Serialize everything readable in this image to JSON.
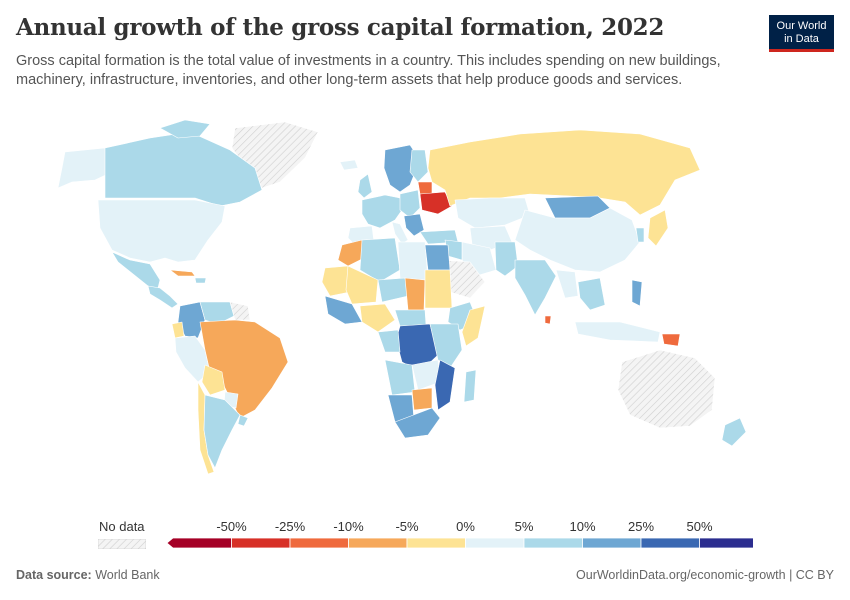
{
  "header": {
    "title": "Annual growth of the gross capital formation, 2022",
    "subtitle": "Gross capital formation is the total value of investments in a country. This includes spending on new buildings, machinery, infrastructure, inventories, and other long-term assets that help produce goods and services."
  },
  "logo": {
    "line1": "Our World",
    "line2": "in Data"
  },
  "legend": {
    "no_data_label": "No data",
    "ticks": [
      "-50%",
      "-25%",
      "-10%",
      "-5%",
      "0%",
      "5%",
      "10%",
      "25%",
      "50%"
    ],
    "bins": [
      {
        "from": null,
        "to": "-50%",
        "color": "#a50026"
      },
      {
        "from": "-50%",
        "to": "-25%",
        "color": "#d73027"
      },
      {
        "from": "-25%",
        "to": "-10%",
        "color": "#ef6a3d"
      },
      {
        "from": "-10%",
        "to": "-5%",
        "color": "#f6a85a"
      },
      {
        "from": "-5%",
        "to": "0%",
        "color": "#fde394"
      },
      {
        "from": "0%",
        "to": "5%",
        "color": "#e3f2f8"
      },
      {
        "from": "5%",
        "to": "10%",
        "color": "#abd9e9"
      },
      {
        "from": "10%",
        "to": "25%",
        "color": "#6ea7d3"
      },
      {
        "from": "25%",
        "to": "50%",
        "color": "#3a68b2"
      },
      {
        "from": "50%",
        "to": null,
        "color": "#2b2d8f"
      }
    ]
  },
  "colors": {
    "no_data": "#f1f1f1",
    "border": "#ffffff",
    "hatch": "#cfcfcf"
  },
  "footer": {
    "source_label": "Data source:",
    "source_value": "World Bank",
    "url": "OurWorldinData.org/economic-growth | CC BY"
  }
}
